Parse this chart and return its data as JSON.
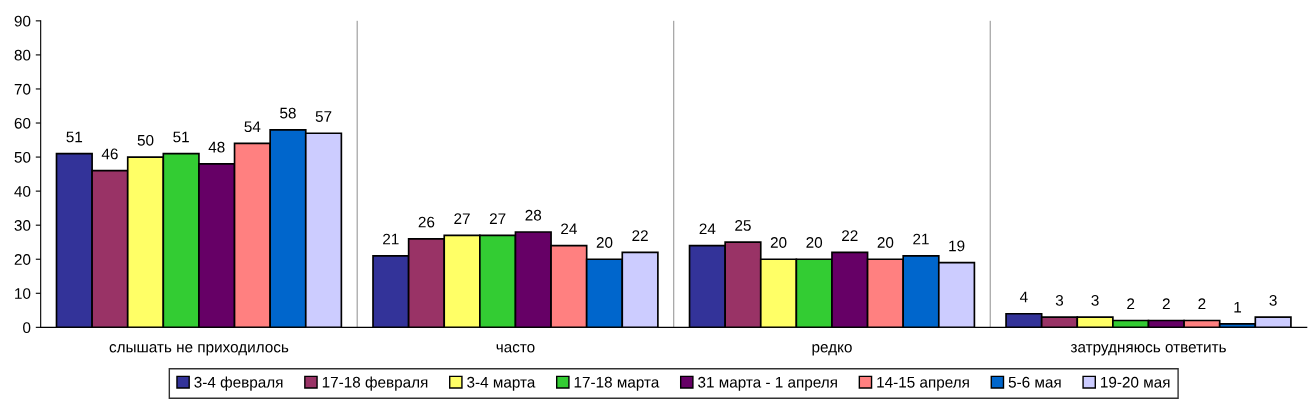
{
  "chart_data": {
    "type": "bar",
    "categories": [
      "слышать не приходилось",
      "часто",
      "редко",
      "затрудняюсь ответить"
    ],
    "series": [
      {
        "name": "3-4 февраля",
        "color": "#333399",
        "values": [
          51,
          21,
          24,
          4
        ]
      },
      {
        "name": "17-18 февраля",
        "color": "#993366",
        "values": [
          46,
          26,
          25,
          3
        ]
      },
      {
        "name": "3-4 марта",
        "color": "#ffff66",
        "values": [
          50,
          27,
          20,
          3
        ]
      },
      {
        "name": "17-18 марта",
        "color": "#33cc33",
        "values": [
          51,
          27,
          20,
          2
        ]
      },
      {
        "name": "31 марта - 1 апреля",
        "color": "#660066",
        "values": [
          48,
          28,
          22,
          2
        ]
      },
      {
        "name": "14-15 апреля",
        "color": "#ff8080",
        "values": [
          54,
          24,
          20,
          2
        ]
      },
      {
        "name": "5-6 мая",
        "color": "#0066cc",
        "values": [
          58,
          20,
          21,
          1
        ]
      },
      {
        "name": "19-20 мая",
        "color": "#ccccff",
        "values": [
          57,
          22,
          19,
          3
        ]
      }
    ],
    "ylim": [
      0,
      90
    ],
    "yticks": [
      0,
      10,
      20,
      30,
      40,
      50,
      60,
      70,
      80,
      90
    ],
    "grid": "x",
    "legend": "bottom",
    "data_labels": true
  }
}
